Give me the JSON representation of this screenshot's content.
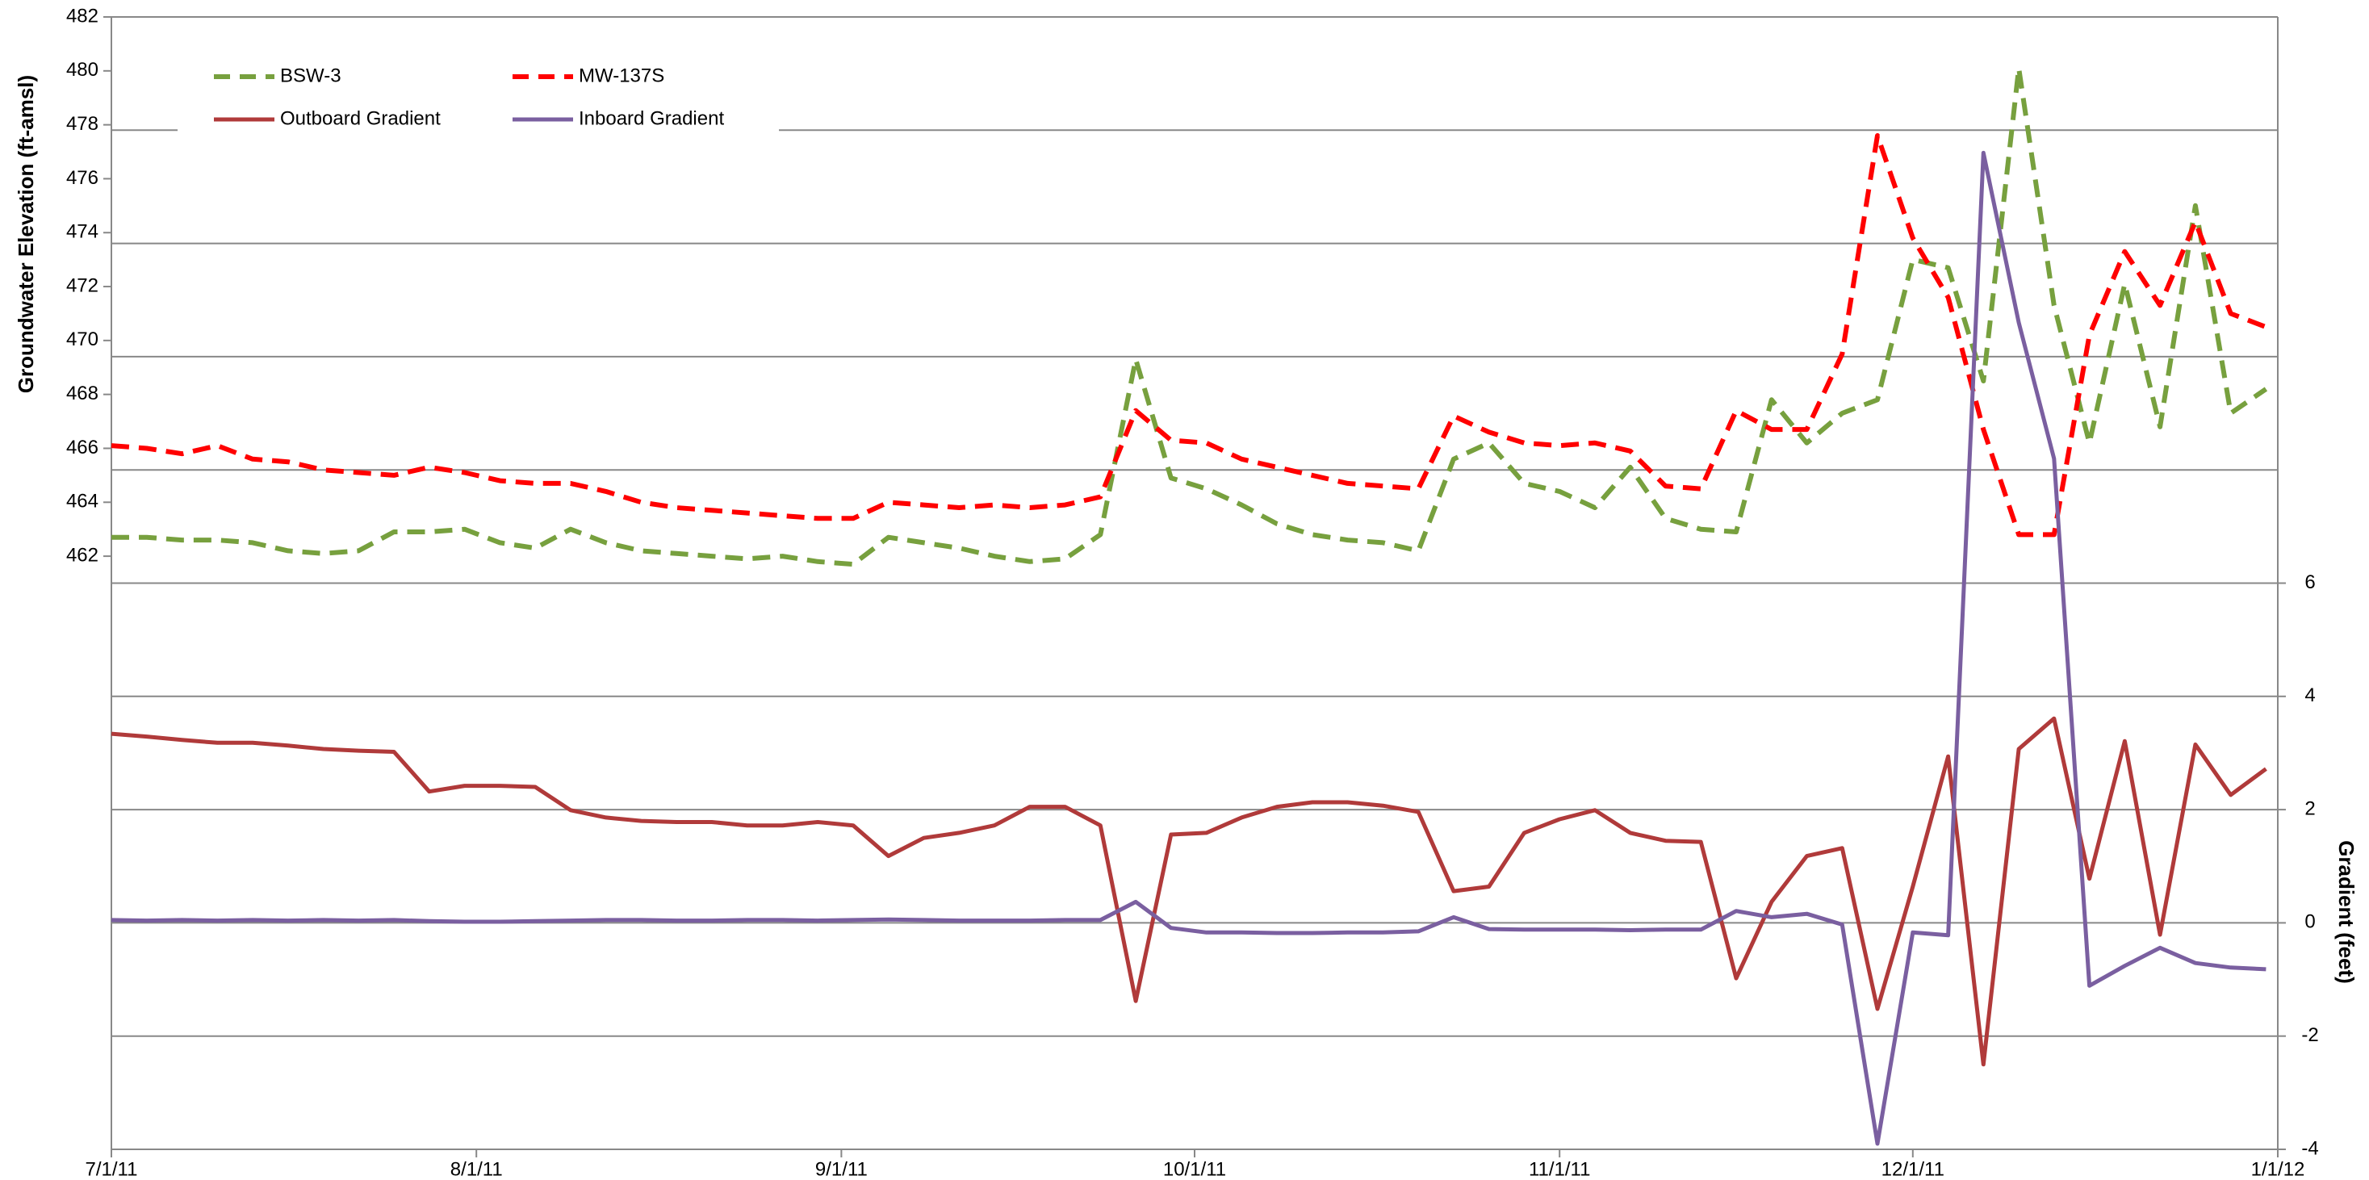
{
  "chart_data": {
    "type": "line",
    "y_label": "Groundwater Elevation (ft-amsl)",
    "y2_label": "Gradient (feet)",
    "x": [
      "2011-07-01",
      "2011-07-04",
      "2011-07-07",
      "2011-07-10",
      "2011-07-13",
      "2011-07-16",
      "2011-07-19",
      "2011-07-22",
      "2011-07-25",
      "2011-07-28",
      "2011-07-31",
      "2011-08-03",
      "2011-08-06",
      "2011-08-09",
      "2011-08-12",
      "2011-08-15",
      "2011-08-18",
      "2011-08-21",
      "2011-08-24",
      "2011-08-27",
      "2011-08-30",
      "2011-09-02",
      "2011-09-05",
      "2011-09-08",
      "2011-09-11",
      "2011-09-14",
      "2011-09-17",
      "2011-09-20",
      "2011-09-23",
      "2011-09-26",
      "2011-09-29",
      "2011-10-02",
      "2011-10-05",
      "2011-10-08",
      "2011-10-11",
      "2011-10-14",
      "2011-10-17",
      "2011-10-20",
      "2011-10-23",
      "2011-10-26",
      "2011-10-29",
      "2011-11-01",
      "2011-11-04",
      "2011-11-07",
      "2011-11-10",
      "2011-11-13",
      "2011-11-16",
      "2011-11-19",
      "2011-11-22",
      "2011-11-25",
      "2011-11-28",
      "2011-12-01",
      "2011-12-04",
      "2011-12-07",
      "2011-12-10",
      "2011-12-13",
      "2011-12-16",
      "2011-12-19",
      "2011-12-22",
      "2011-12-25",
      "2011-12-28",
      "2011-12-31"
    ],
    "series": [
      {
        "name": "BSW-3",
        "color": "#77a03e",
        "dashed": true,
        "axis": "y",
        "values": [
          462.7,
          462.7,
          462.6,
          462.6,
          462.5,
          462.2,
          462.1,
          462.2,
          462.9,
          462.9,
          463.0,
          462.5,
          462.3,
          463.0,
          462.5,
          462.2,
          462.1,
          462.0,
          461.9,
          462.0,
          461.8,
          461.7,
          462.7,
          462.5,
          462.3,
          462.0,
          461.8,
          461.9,
          462.8,
          469.3,
          464.9,
          464.5,
          463.9,
          463.2,
          462.8,
          462.6,
          462.5,
          462.2,
          465.6,
          466.2,
          464.7,
          464.4,
          463.8,
          465.3,
          463.4,
          463.0,
          462.9,
          467.8,
          466.2,
          467.3,
          467.8,
          473.0,
          472.7,
          468.5,
          480.1,
          471.3,
          466.2,
          472.1,
          466.8,
          475.0,
          467.3,
          468.2
        ]
      },
      {
        "name": "MW-137S",
        "color": "#ff0000",
        "dashed": true,
        "axis": "y",
        "values": [
          466.1,
          466.0,
          465.8,
          466.1,
          465.6,
          465.5,
          465.2,
          465.1,
          465.0,
          465.3,
          465.1,
          464.8,
          464.7,
          464.7,
          464.4,
          464.0,
          463.8,
          463.7,
          463.6,
          463.5,
          463.4,
          463.4,
          464.0,
          463.9,
          463.8,
          463.9,
          463.8,
          463.9,
          464.2,
          467.4,
          466.3,
          466.2,
          465.6,
          465.3,
          465.0,
          464.7,
          464.6,
          464.5,
          467.2,
          466.6,
          466.2,
          466.1,
          466.2,
          465.9,
          464.6,
          464.5,
          467.4,
          466.7,
          466.7,
          469.5,
          477.6,
          473.8,
          471.6,
          466.7,
          462.8,
          462.8,
          470.2,
          473.3,
          471.3,
          474.4,
          471.0,
          470.5
        ]
      },
      {
        "name": "Outboard Gradient",
        "color": "#b03a3a",
        "dashed": false,
        "axis": "y2",
        "values": [
          3.34,
          3.29,
          3.23,
          3.18,
          3.18,
          3.13,
          3.07,
          3.04,
          3.02,
          2.32,
          2.42,
          2.42,
          2.4,
          1.99,
          1.86,
          1.8,
          1.78,
          1.78,
          1.72,
          1.72,
          1.78,
          1.72,
          1.18,
          1.5,
          1.59,
          1.72,
          2.05,
          2.05,
          1.72,
          -1.38,
          1.56,
          1.59,
          1.86,
          2.05,
          2.13,
          2.13,
          2.07,
          1.96,
          0.56,
          0.64,
          1.59,
          1.83,
          1.99,
          1.59,
          1.45,
          1.43,
          -0.98,
          0.37,
          1.18,
          1.32,
          -1.52,
          0.64,
          2.94,
          -2.5,
          3.07,
          3.61,
          0.78,
          3.21,
          -0.21,
          3.15,
          2.26,
          2.72
        ]
      },
      {
        "name": "Inboard Gradient",
        "color": "#7a5fa0",
        "dashed": false,
        "axis": "y2",
        "values": [
          0.05,
          0.04,
          0.05,
          0.04,
          0.05,
          0.04,
          0.05,
          0.04,
          0.05,
          0.03,
          0.02,
          0.02,
          0.03,
          0.04,
          0.05,
          0.05,
          0.04,
          0.04,
          0.05,
          0.05,
          0.04,
          0.05,
          0.06,
          0.05,
          0.04,
          0.04,
          0.04,
          0.05,
          0.05,
          0.37,
          -0.09,
          -0.17,
          -0.17,
          -0.18,
          -0.18,
          -0.17,
          -0.17,
          -0.15,
          0.1,
          -0.11,
          -0.12,
          -0.12,
          -0.12,
          -0.13,
          -0.12,
          -0.12,
          0.21,
          0.1,
          0.16,
          -0.03,
          -3.9,
          -0.17,
          -0.22,
          13.6,
          10.6,
          8.2,
          -1.11,
          -0.76,
          -0.44,
          -0.71,
          -0.79,
          -0.82
        ]
      }
    ],
    "xlim": [
      "2011-07-01",
      "2012-01-01"
    ],
    "xticks": [
      {
        "value": "2011-07-01",
        "label": "7/1/11"
      },
      {
        "value": "2011-08-01",
        "label": "8/1/11"
      },
      {
        "value": "2011-09-01",
        "label": "9/1/11"
      },
      {
        "value": "2011-10-01",
        "label": "10/1/11"
      },
      {
        "value": "2011-11-01",
        "label": "11/1/11"
      },
      {
        "value": "2011-12-01",
        "label": "12/1/11"
      },
      {
        "value": "2012-01-01",
        "label": "1/1/12"
      }
    ],
    "ylim": [
      440,
      482
    ],
    "yticks": [
      462,
      464,
      466,
      468,
      470,
      472,
      474,
      476,
      478,
      480,
      482
    ],
    "y2lim": [
      -4,
      16
    ],
    "y2ticks": [
      -4,
      -2,
      0,
      2,
      4,
      6
    ],
    "y2grid": [
      -2,
      0,
      2,
      4,
      6,
      8,
      10,
      12,
      14
    ],
    "legend": "top-left"
  }
}
